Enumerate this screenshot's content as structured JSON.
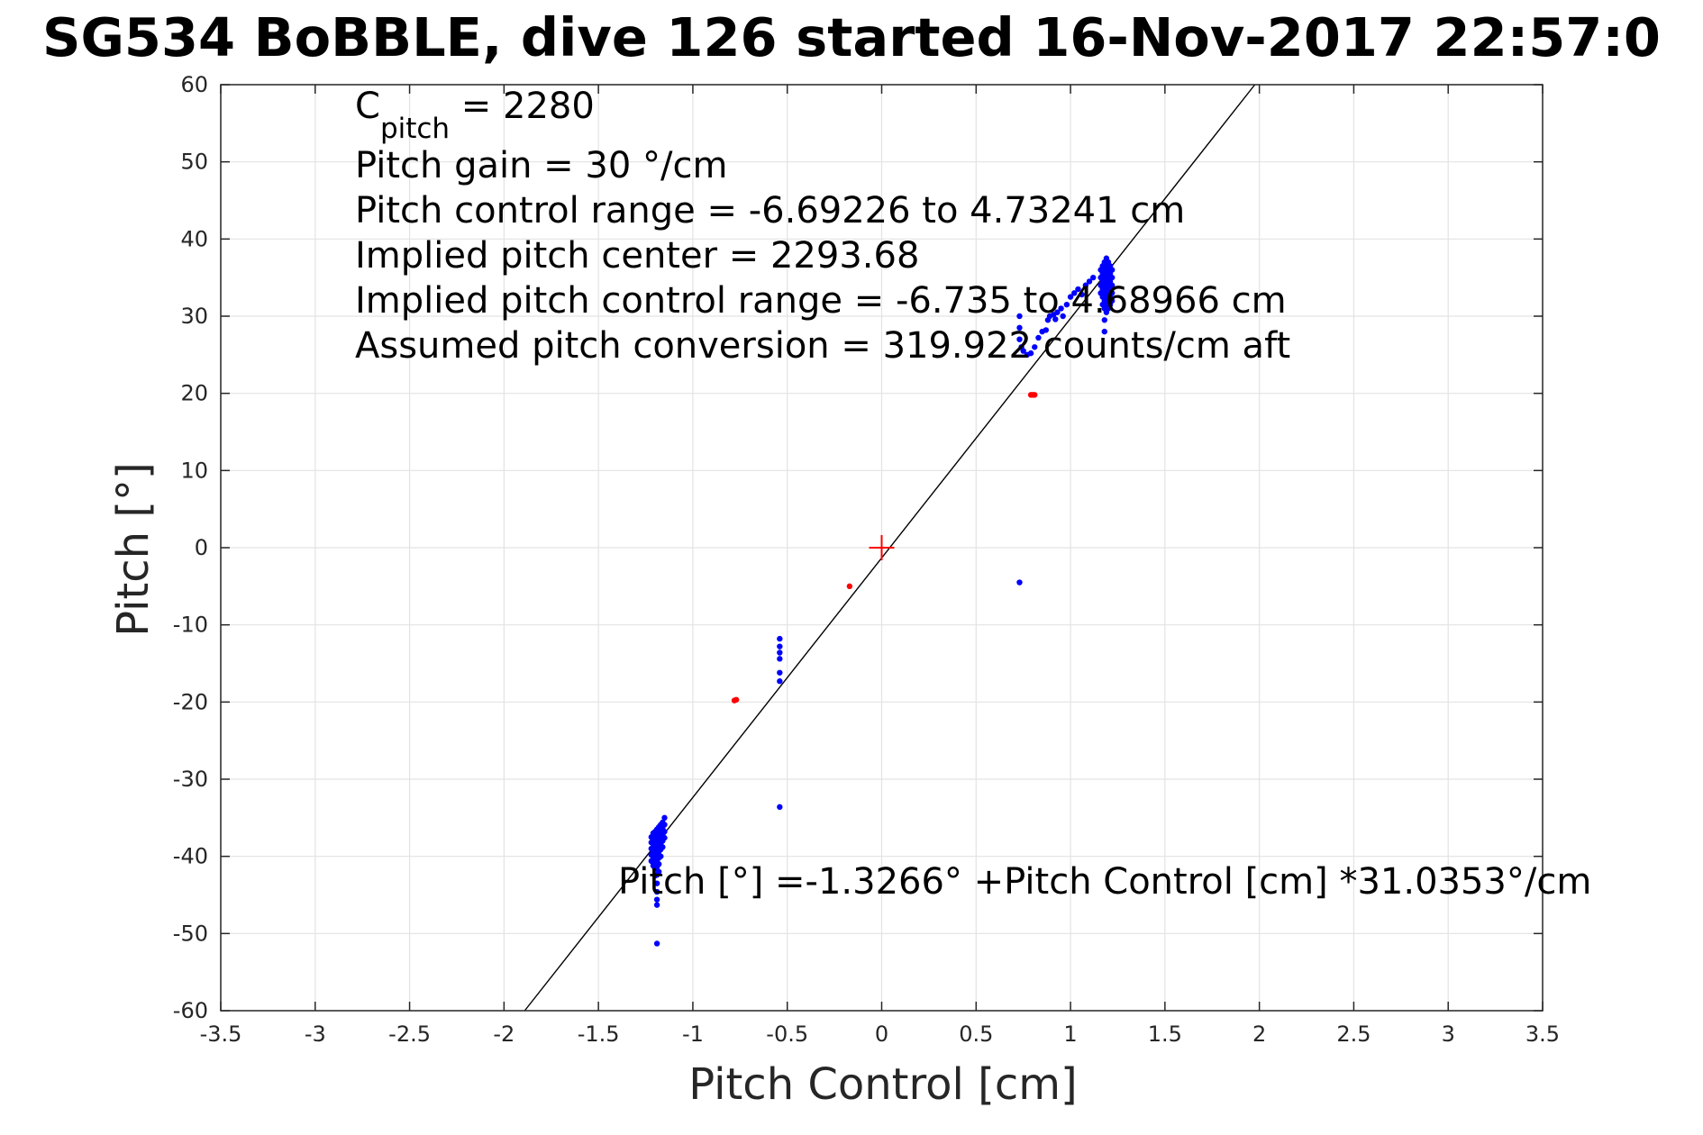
{
  "chart_data": {
    "type": "scatter",
    "title": "SG534 BoBBLE, dive 126 started 16-Nov-2017 22:57:0",
    "xlabel": "Pitch Control [cm]",
    "ylabel": "Pitch [°]",
    "xlim": [
      -3.5,
      3.5
    ],
    "ylim": [
      -60,
      60
    ],
    "xticks": [
      -3.5,
      -3,
      -2.5,
      -2,
      -1.5,
      -1,
      -0.5,
      0,
      0.5,
      1,
      1.5,
      2,
      2.5,
      3,
      3.5
    ],
    "xtick_labels": [
      "-3.5",
      "-3",
      "-2.5",
      "-2",
      "-1.5",
      "-1",
      "-0.5",
      "0",
      "0.5",
      "1",
      "1.5",
      "2",
      "2.5",
      "3",
      "3.5"
    ],
    "yticks": [
      60,
      50,
      40,
      30,
      20,
      10,
      0,
      -10,
      -20,
      -30,
      -40,
      -50,
      -60
    ],
    "ytick_labels": [
      "60",
      "50",
      "40",
      "30",
      "20",
      "10",
      "0",
      "-10",
      "-20",
      "-30",
      "-40",
      "-50",
      "-60"
    ],
    "grid": true,
    "fit_line": {
      "intercept": -1.3266,
      "slope": 31.0353,
      "color": "#000000"
    },
    "center_marker": {
      "x": 0,
      "y": 0,
      "color": "#ff0000"
    },
    "annotations": {
      "cpitch_base": "C",
      "cpitch_sub": "pitch",
      "cpitch_value": " = 2280",
      "pitch_gain": "Pitch gain = 30 °/cm",
      "control_range": "Pitch control range = -6.69226 to 4.73241 cm",
      "implied_center": "Implied pitch center = 2293.68",
      "implied_range": "Implied pitch control range = -6.735 to 4.68966 cm",
      "assumed_conversion": "Assumed pitch conversion = 319.922 counts/cm aft",
      "fit_equation": "Pitch [°] =-1.3266° +Pitch Control [cm] *31.0353°/cm"
    },
    "series": [
      {
        "color": "#0000ff",
        "points": [
          [
            -1.22,
            -37.5
          ],
          [
            -1.22,
            -38.2
          ],
          [
            -1.22,
            -39.0
          ],
          [
            -1.22,
            -39.8
          ],
          [
            -1.22,
            -40.6
          ],
          [
            -1.21,
            -37.0
          ],
          [
            -1.21,
            -38.0
          ],
          [
            -1.21,
            -38.8
          ],
          [
            -1.21,
            -39.5
          ],
          [
            -1.21,
            -40.3
          ],
          [
            -1.21,
            -41.2
          ],
          [
            -1.2,
            -36.8
          ],
          [
            -1.2,
            -37.6
          ],
          [
            -1.2,
            -38.4
          ],
          [
            -1.2,
            -39.1
          ],
          [
            -1.2,
            -39.9
          ],
          [
            -1.2,
            -40.7
          ],
          [
            -1.2,
            -41.6
          ],
          [
            -1.2,
            -42.5
          ],
          [
            -1.19,
            -36.5
          ],
          [
            -1.19,
            -37.3
          ],
          [
            -1.19,
            -38.1
          ],
          [
            -1.19,
            -38.9
          ],
          [
            -1.19,
            -39.7
          ],
          [
            -1.19,
            -40.5
          ],
          [
            -1.19,
            -41.4
          ],
          [
            -1.19,
            -42.4
          ],
          [
            -1.19,
            -43.5
          ],
          [
            -1.19,
            -44.6
          ],
          [
            -1.19,
            -45.6
          ],
          [
            -1.19,
            -46.3
          ],
          [
            -1.18,
            -36.2
          ],
          [
            -1.18,
            -37.0
          ],
          [
            -1.18,
            -37.8
          ],
          [
            -1.18,
            -38.6
          ],
          [
            -1.18,
            -39.4
          ],
          [
            -1.18,
            -40.2
          ],
          [
            -1.18,
            -41.0
          ],
          [
            -1.18,
            -42.0
          ],
          [
            -1.17,
            -35.9
          ],
          [
            -1.17,
            -36.7
          ],
          [
            -1.17,
            -37.5
          ],
          [
            -1.17,
            -38.3
          ],
          [
            -1.17,
            -39.1
          ],
          [
            -1.17,
            -40.0
          ],
          [
            -1.16,
            -35.6
          ],
          [
            -1.16,
            -36.4
          ],
          [
            -1.16,
            -37.2
          ],
          [
            -1.16,
            -38.0
          ],
          [
            -1.16,
            -38.8
          ],
          [
            -1.15,
            -35.0
          ],
          [
            -1.15,
            -35.9
          ],
          [
            -1.15,
            -36.8
          ],
          [
            -1.15,
            -37.6
          ],
          [
            -1.19,
            -51.3
          ],
          [
            -0.54,
            -11.8
          ],
          [
            -0.54,
            -12.8
          ],
          [
            -0.54,
            -13.6
          ],
          [
            -0.54,
            -14.4
          ],
          [
            -0.54,
            -16.2
          ],
          [
            -0.54,
            -17.3
          ],
          [
            -0.54,
            -33.6
          ],
          [
            0.73,
            -4.5
          ],
          [
            0.73,
            30.0
          ],
          [
            0.73,
            28.5
          ],
          [
            0.73,
            27.0
          ],
          [
            0.74,
            26.0
          ],
          [
            0.75,
            25.5
          ],
          [
            0.77,
            25.0
          ],
          [
            0.79,
            25.2
          ],
          [
            0.81,
            26.0
          ],
          [
            0.83,
            27.2
          ],
          [
            0.85,
            28.0
          ],
          [
            0.87,
            28.2
          ],
          [
            0.88,
            29.5
          ],
          [
            0.89,
            30.0
          ],
          [
            0.91,
            30.2
          ],
          [
            0.92,
            29.6
          ],
          [
            0.93,
            30.5
          ],
          [
            0.95,
            31.0
          ],
          [
            0.96,
            30.0
          ],
          [
            0.98,
            31.5
          ],
          [
            1.0,
            32.5
          ],
          [
            1.02,
            33.0
          ],
          [
            1.04,
            33.5
          ],
          [
            1.06,
            32.8
          ],
          [
            1.08,
            34.0
          ],
          [
            1.1,
            34.5
          ],
          [
            1.12,
            35.0
          ],
          [
            1.16,
            33.0
          ],
          [
            1.16,
            34.0
          ],
          [
            1.16,
            35.0
          ],
          [
            1.16,
            36.0
          ],
          [
            1.17,
            31.5
          ],
          [
            1.17,
            32.5
          ],
          [
            1.17,
            33.5
          ],
          [
            1.17,
            34.5
          ],
          [
            1.17,
            35.5
          ],
          [
            1.17,
            36.5
          ],
          [
            1.18,
            28.0
          ],
          [
            1.18,
            29.5
          ],
          [
            1.18,
            31.0
          ],
          [
            1.18,
            32.0
          ],
          [
            1.18,
            33.0
          ],
          [
            1.18,
            34.0
          ],
          [
            1.18,
            35.0
          ],
          [
            1.18,
            36.0
          ],
          [
            1.18,
            37.0
          ],
          [
            1.19,
            30.5
          ],
          [
            1.19,
            31.5
          ],
          [
            1.19,
            32.5
          ],
          [
            1.19,
            33.5
          ],
          [
            1.19,
            34.5
          ],
          [
            1.19,
            35.5
          ],
          [
            1.19,
            36.5
          ],
          [
            1.19,
            37.5
          ],
          [
            1.2,
            31.0
          ],
          [
            1.2,
            32.0
          ],
          [
            1.2,
            33.0
          ],
          [
            1.2,
            34.0
          ],
          [
            1.2,
            35.0
          ],
          [
            1.2,
            36.0
          ],
          [
            1.2,
            37.0
          ],
          [
            1.21,
            31.5
          ],
          [
            1.21,
            32.5
          ],
          [
            1.21,
            33.5
          ],
          [
            1.21,
            34.5
          ],
          [
            1.21,
            35.5
          ],
          [
            1.21,
            36.5
          ],
          [
            1.22,
            32.0
          ],
          [
            1.22,
            33.0
          ],
          [
            1.22,
            34.0
          ],
          [
            1.22,
            35.0
          ],
          [
            1.22,
            36.0
          ]
        ]
      },
      {
        "color": "#ff0000",
        "points": [
          [
            -0.78,
            -19.8
          ],
          [
            -0.77,
            -19.7
          ],
          [
            -0.17,
            -5.0
          ],
          [
            0.79,
            19.8
          ],
          [
            0.8,
            19.8
          ],
          [
            0.81,
            19.8
          ]
        ]
      }
    ]
  }
}
